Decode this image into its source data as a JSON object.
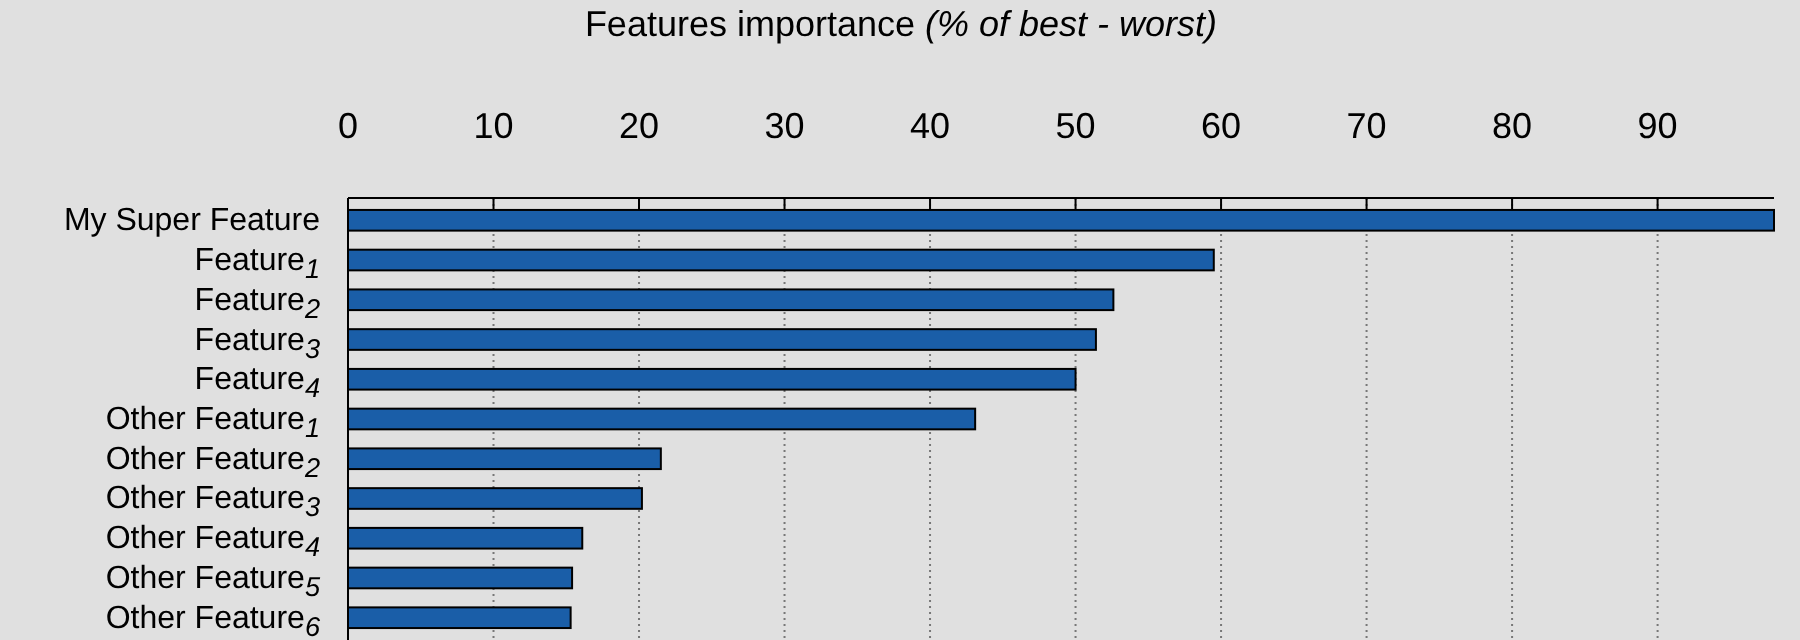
{
  "chart_data": {
    "type": "bar",
    "orientation": "horizontal",
    "title": "Features importance (% of best - worst)",
    "categories": [
      "My Super Feature",
      "Feature$_{1}$",
      "Feature$_{2}$",
      "Feature$_{3}$",
      "Feature$_{4}$",
      "Other Feature$_{1}$",
      "Other Feature$_{2}$",
      "Other Feature$_{3}$",
      "Other Feature$_{4}$",
      "Other Feature$_{5}$",
      "Other Feature$_{6}$"
    ],
    "values": [
      98,
      59.5,
      52.6,
      51.4,
      50.0,
      43.1,
      21.5,
      20.2,
      16.1,
      15.4,
      15.3
    ],
    "color": "#1a5ea8",
    "xlim": [
      0,
      98
    ],
    "xticks": [
      0,
      10,
      20,
      30,
      40,
      50,
      60,
      70,
      80,
      90
    ],
    "grid": "x"
  }
}
